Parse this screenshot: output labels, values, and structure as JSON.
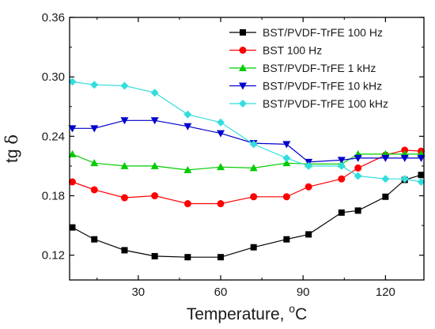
{
  "chart_data": {
    "type": "line",
    "title": "",
    "xlabel": {
      "main": "Temperature, ",
      "sup": "o",
      "unit": "C"
    },
    "ylabel": {
      "main": "tg ",
      "symbol": "δ"
    },
    "xlim": [
      5,
      134
    ],
    "ylim": [
      0.095,
      0.36
    ],
    "xticks": [
      30,
      60,
      90,
      120
    ],
    "yticks": [
      0.12,
      0.18,
      0.24,
      0.3,
      0.36
    ],
    "ytick_labels": [
      "0.12",
      "0.18",
      "0.24",
      "0.30",
      "0.36"
    ],
    "grid": false,
    "legend_position": "top-right",
    "series": [
      {
        "name": "BST/PVDF-TrFE 100 Hz",
        "color": "#000000",
        "marker": "square",
        "x": [
          6,
          14,
          25,
          36,
          48,
          60,
          72,
          84,
          92,
          104,
          110,
          120,
          127,
          133
        ],
        "y": [
          0.148,
          0.136,
          0.125,
          0.119,
          0.118,
          0.118,
          0.128,
          0.136,
          0.141,
          0.163,
          0.165,
          0.179,
          0.196,
          0.201
        ]
      },
      {
        "name": "BST 100 Hz",
        "color": "#ff0000",
        "marker": "circle",
        "x": [
          6,
          14,
          25,
          36,
          48,
          60,
          72,
          84,
          92,
          104,
          110,
          120,
          127,
          133
        ],
        "y": [
          0.194,
          0.186,
          0.178,
          0.18,
          0.172,
          0.172,
          0.179,
          0.179,
          0.189,
          0.197,
          0.208,
          0.221,
          0.226,
          0.225
        ]
      },
      {
        "name": "BST/PVDF-TrFE 1 kHz",
        "color": "#00cc00",
        "marker": "triangle-up",
        "x": [
          6,
          14,
          25,
          36,
          48,
          60,
          72,
          84,
          92,
          104,
          110,
          120,
          127,
          133
        ],
        "y": [
          0.222,
          0.213,
          0.21,
          0.21,
          0.206,
          0.209,
          0.208,
          0.213,
          0.212,
          0.212,
          0.222,
          0.222,
          0.222,
          0.222
        ]
      },
      {
        "name": "BST/PVDF-TrFE 10 kHz",
        "color": "#0000cc",
        "marker": "triangle-down",
        "x": [
          6,
          14,
          25,
          36,
          48,
          60,
          72,
          84,
          92,
          104,
          110,
          120,
          127,
          133
        ],
        "y": [
          0.248,
          0.248,
          0.256,
          0.256,
          0.25,
          0.243,
          0.233,
          0.232,
          0.214,
          0.216,
          0.218,
          0.218,
          0.218,
          0.218
        ]
      },
      {
        "name": "BST/PVDF-TrFE 100 kHz",
        "color": "#33dddd",
        "marker": "diamond",
        "x": [
          6,
          14,
          25,
          36,
          48,
          60,
          72,
          84,
          92,
          104,
          110,
          120,
          127,
          133
        ],
        "y": [
          0.295,
          0.292,
          0.291,
          0.284,
          0.262,
          0.254,
          0.232,
          0.218,
          0.21,
          0.21,
          0.2,
          0.197,
          0.197,
          0.194
        ]
      }
    ]
  }
}
